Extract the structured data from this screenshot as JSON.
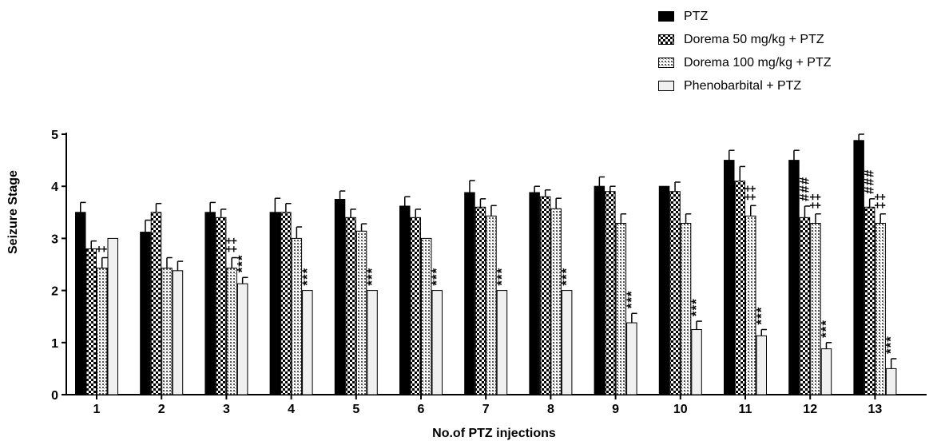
{
  "chart_data": {
    "type": "bar",
    "title": "",
    "xlabel": "No.of PTZ injections",
    "ylabel": "Seizure Stage",
    "ylim": [
      0,
      5
    ],
    "yticks": [
      0,
      1,
      2,
      3,
      4,
      5
    ],
    "categories": [
      "1",
      "2",
      "3",
      "4",
      "5",
      "6",
      "7",
      "8",
      "9",
      "10",
      "11",
      "12",
      "13"
    ],
    "series": [
      {
        "name": "PTZ",
        "pattern": "solid",
        "values": [
          3.5,
          3.12,
          3.5,
          3.5,
          3.75,
          3.62,
          3.88,
          3.88,
          4.0,
          4.0,
          4.5,
          4.5,
          4.88
        ],
        "errors": [
          0.19,
          0.23,
          0.19,
          0.27,
          0.16,
          0.18,
          0.23,
          0.12,
          0.18,
          0.0,
          0.19,
          0.19,
          0.12
        ]
      },
      {
        "name": "Dorema 50 mg/kg + PTZ",
        "pattern": "checker",
        "values": [
          2.8,
          3.5,
          3.4,
          3.5,
          3.4,
          3.4,
          3.6,
          3.8,
          3.9,
          3.9,
          4.1,
          3.4,
          3.6
        ],
        "errors": [
          0.15,
          0.17,
          0.16,
          0.17,
          0.16,
          0.16,
          0.16,
          0.13,
          0.1,
          0.18,
          0.28,
          0.22,
          0.16
        ]
      },
      {
        "name": "Dorema 100 mg/kg + PTZ",
        "pattern": "dots",
        "values": [
          2.43,
          2.43,
          2.43,
          3.0,
          3.14,
          3.0,
          3.43,
          3.57,
          3.29,
          3.29,
          3.43,
          3.29,
          3.29
        ],
        "errors": [
          0.2,
          0.2,
          0.2,
          0.22,
          0.14,
          0.0,
          0.2,
          0.2,
          0.18,
          0.18,
          0.2,
          0.18,
          0.18
        ]
      },
      {
        "name": "Phenobarbital + PTZ",
        "pattern": "light",
        "values": [
          3.0,
          2.38,
          2.13,
          2.0,
          2.0,
          2.0,
          2.0,
          2.0,
          1.38,
          1.25,
          1.13,
          0.88,
          0.5
        ],
        "errors": [
          0.0,
          0.18,
          0.12,
          0.0,
          0.0,
          0.0,
          0.0,
          0.0,
          0.18,
          0.16,
          0.12,
          0.12,
          0.19
        ]
      }
    ],
    "annotations": [
      {
        "category": "1",
        "series": 2,
        "text": "‡"
      },
      {
        "category": "3",
        "series": 2,
        "text": "‡‡"
      },
      {
        "category": "3",
        "series": 3,
        "text": "***"
      },
      {
        "category": "4",
        "series": 3,
        "text": "***"
      },
      {
        "category": "5",
        "series": 3,
        "text": "***"
      },
      {
        "category": "6",
        "series": 3,
        "text": "***"
      },
      {
        "category": "7",
        "series": 3,
        "text": "***"
      },
      {
        "category": "8",
        "series": 3,
        "text": "***"
      },
      {
        "category": "9",
        "series": 3,
        "text": "***"
      },
      {
        "category": "10",
        "series": 3,
        "text": "***"
      },
      {
        "category": "11",
        "series": 2,
        "text": "‡‡"
      },
      {
        "category": "11",
        "series": 3,
        "text": "***"
      },
      {
        "category": "12",
        "series": 1,
        "text": "###"
      },
      {
        "category": "12",
        "series": 2,
        "text": "‡‡"
      },
      {
        "category": "12",
        "series": 3,
        "text": "***"
      },
      {
        "category": "13",
        "series": 1,
        "text": "###"
      },
      {
        "category": "13",
        "series": 2,
        "text": "‡‡"
      },
      {
        "category": "13",
        "series": 3,
        "text": "***"
      }
    ],
    "legend": {
      "position": "top-right"
    },
    "grid": false
  }
}
